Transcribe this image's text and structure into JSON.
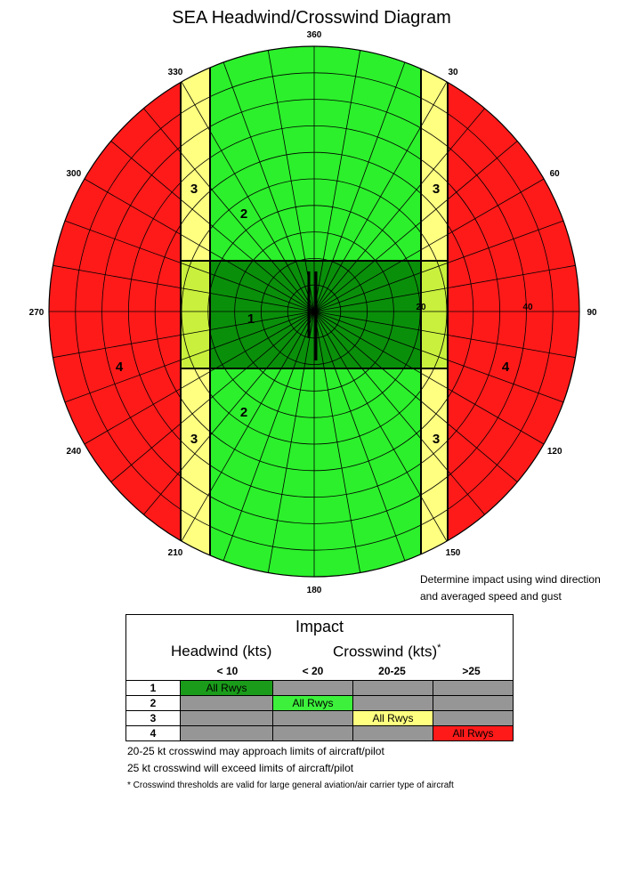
{
  "title": "SEA Headwind/Crosswind Diagram",
  "compass_labels": [
    "360",
    "30",
    "60",
    "90",
    "120",
    "150",
    "180",
    "210",
    "240",
    "270",
    "300",
    "330"
  ],
  "speed_labels": [
    "20",
    "40"
  ],
  "zone_labels": {
    "zone1": "1",
    "zone2": "2",
    "zone3": "3",
    "zone4": "4"
  },
  "colors": {
    "zone1": "#0a8f0a",
    "zone1_edge": "#c8f03c",
    "zone2": "#2bf02b",
    "zone3": "#ffff80",
    "zone4": "#ff1a1a"
  },
  "note": {
    "line1": "Determine impact using wind direction",
    "line2": "and averaged speed and gust"
  },
  "impact": {
    "title": "Impact",
    "headwind_header": "Headwind (kts)",
    "crosswind_header": "Crosswind (kts)",
    "crosswind_mark": "*",
    "columns": [
      "< 10",
      "< 20",
      "20-25",
      ">25"
    ],
    "rows": [
      {
        "num": "1",
        "cells": [
          "All Rwys",
          "",
          "",
          ""
        ]
      },
      {
        "num": "2",
        "cells": [
          "",
          "All Rwys",
          "",
          ""
        ]
      },
      {
        "num": "3",
        "cells": [
          "",
          "",
          "All Rwys",
          ""
        ]
      },
      {
        "num": "4",
        "cells": [
          "",
          "",
          "",
          "All Rwys"
        ]
      }
    ]
  },
  "footnotes": {
    "line1": "20-25 kt crosswind may approach limits of aircraft/pilot",
    "line2": "25 kt crosswind will exceed limits of aircraft/pilot",
    "line3": "* Crosswind thresholds are valid for large general aviation/air carrier type of aircraft"
  }
}
